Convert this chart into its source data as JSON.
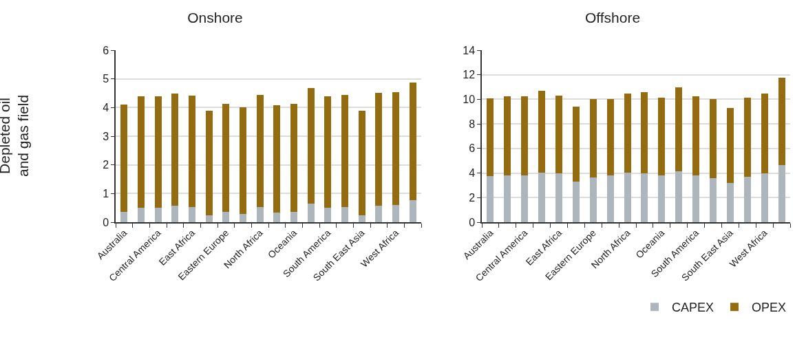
{
  "chart_data": [
    {
      "type": "bar",
      "title": "Onshore",
      "ylabel": "Depleted oil\nand gas field",
      "stacked": true,
      "grid": "y",
      "legend": false,
      "categories": [
        "Australia",
        null,
        "Central America",
        null,
        "East Africa",
        null,
        "Eastern Europe",
        null,
        "North Africa",
        null,
        "Oceania",
        null,
        "South America",
        null,
        "South East Asia",
        null,
        "West Africa",
        null
      ],
      "ylim": [
        0,
        6
      ],
      "yticks": [
        0,
        1,
        2,
        3,
        4,
        5,
        6
      ],
      "series": [
        {
          "color": "#adb5bd",
          "values": [
            0.35,
            0.5,
            0.5,
            0.57,
            0.53,
            0.23,
            0.37,
            0.3,
            0.53,
            0.33,
            0.37,
            0.65,
            0.5,
            0.53,
            0.23,
            0.58,
            0.6,
            0.78
          ]
        },
        {
          "color": "#946c0f",
          "values": [
            3.75,
            3.9,
            3.9,
            3.91,
            3.89,
            3.65,
            3.75,
            3.7,
            3.92,
            3.74,
            3.75,
            4.02,
            3.9,
            3.9,
            3.65,
            3.94,
            3.94,
            4.09
          ]
        }
      ]
    },
    {
      "type": "bar",
      "title": "Offshore",
      "stacked": true,
      "grid": "y",
      "legend": "bottom",
      "categories": [
        "Australia",
        null,
        "Central America",
        null,
        "East Africa",
        null,
        "Eastern Europe",
        null,
        "North Africa",
        null,
        "Oceania",
        null,
        "South America",
        null,
        "South East Asia",
        null,
        "West Africa",
        null
      ],
      "ylim": [
        0,
        14
      ],
      "yticks": [
        0,
        2,
        4,
        6,
        8,
        10,
        12,
        14
      ],
      "series": [
        {
          "name": "CAPEX",
          "color": "#adb5bd",
          "values": [
            3.75,
            3.8,
            3.8,
            4.05,
            3.95,
            3.3,
            3.65,
            3.8,
            4.05,
            4.0,
            3.8,
            4.15,
            3.8,
            3.6,
            3.2,
            3.7,
            4.0,
            4.65
          ]
        },
        {
          "name": "OPEX",
          "color": "#946c0f",
          "values": [
            6.35,
            6.45,
            6.45,
            6.65,
            6.35,
            6.1,
            6.4,
            6.25,
            6.45,
            6.6,
            6.35,
            6.85,
            6.45,
            6.4,
            6.1,
            6.45,
            6.45,
            7.1
          ]
        }
      ]
    }
  ]
}
